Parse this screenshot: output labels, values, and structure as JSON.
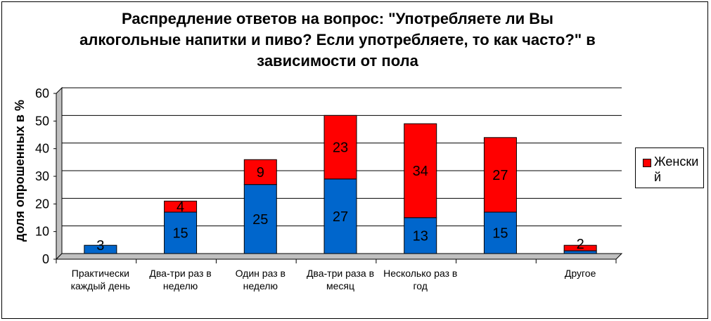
{
  "chart_data": {
    "type": "bar",
    "stacked": true,
    "title": "Распредление ответов на вопрос: \"Употребляете ли Вы алкогольные напитки и пиво? Если употребляете, то как часто?\" в зависимости от пола",
    "ylabel": "доля опрошенных в %",
    "xlabel": "",
    "ylim": [
      0,
      60
    ],
    "yticks": [
      "0",
      "10",
      "20",
      "30",
      "40",
      "50",
      "60"
    ],
    "grid": true,
    "legend_position": "right",
    "categories": [
      "Практически каждый день",
      "Два-три раз в неделю",
      "Один раз в неделю",
      "Два-три раза в месяц",
      "Несколько раз в год",
      "",
      "Другое"
    ],
    "series": [
      {
        "color": "#0066cc",
        "values": [
          3,
          15,
          25,
          27,
          13,
          15,
          1
        ]
      },
      {
        "name": "Женский",
        "color": "#ff0000",
        "values": [
          0,
          4,
          9,
          23,
          34,
          27,
          2
        ]
      }
    ],
    "data_labels": [
      {
        "category_index": 0,
        "text": "3",
        "at": 3
      },
      {
        "category_index": 1,
        "text": "15",
        "at": 7.5
      },
      {
        "category_index": 1,
        "text": "4",
        "at": 17
      },
      {
        "category_index": 2,
        "text": "25",
        "at": 12.5
      },
      {
        "category_index": 2,
        "text": "9",
        "at": 29.5
      },
      {
        "category_index": 3,
        "text": "27",
        "at": 13.5
      },
      {
        "category_index": 3,
        "text": "23",
        "at": 38.5
      },
      {
        "category_index": 4,
        "text": "13",
        "at": 6.5
      },
      {
        "category_index": 4,
        "text": "34",
        "at": 30
      },
      {
        "category_index": 5,
        "text": "15",
        "at": 7.5
      },
      {
        "category_index": 5,
        "text": "27",
        "at": 28.5
      },
      {
        "category_index": 6,
        "text": "2",
        "at": 3.5
      }
    ]
  }
}
